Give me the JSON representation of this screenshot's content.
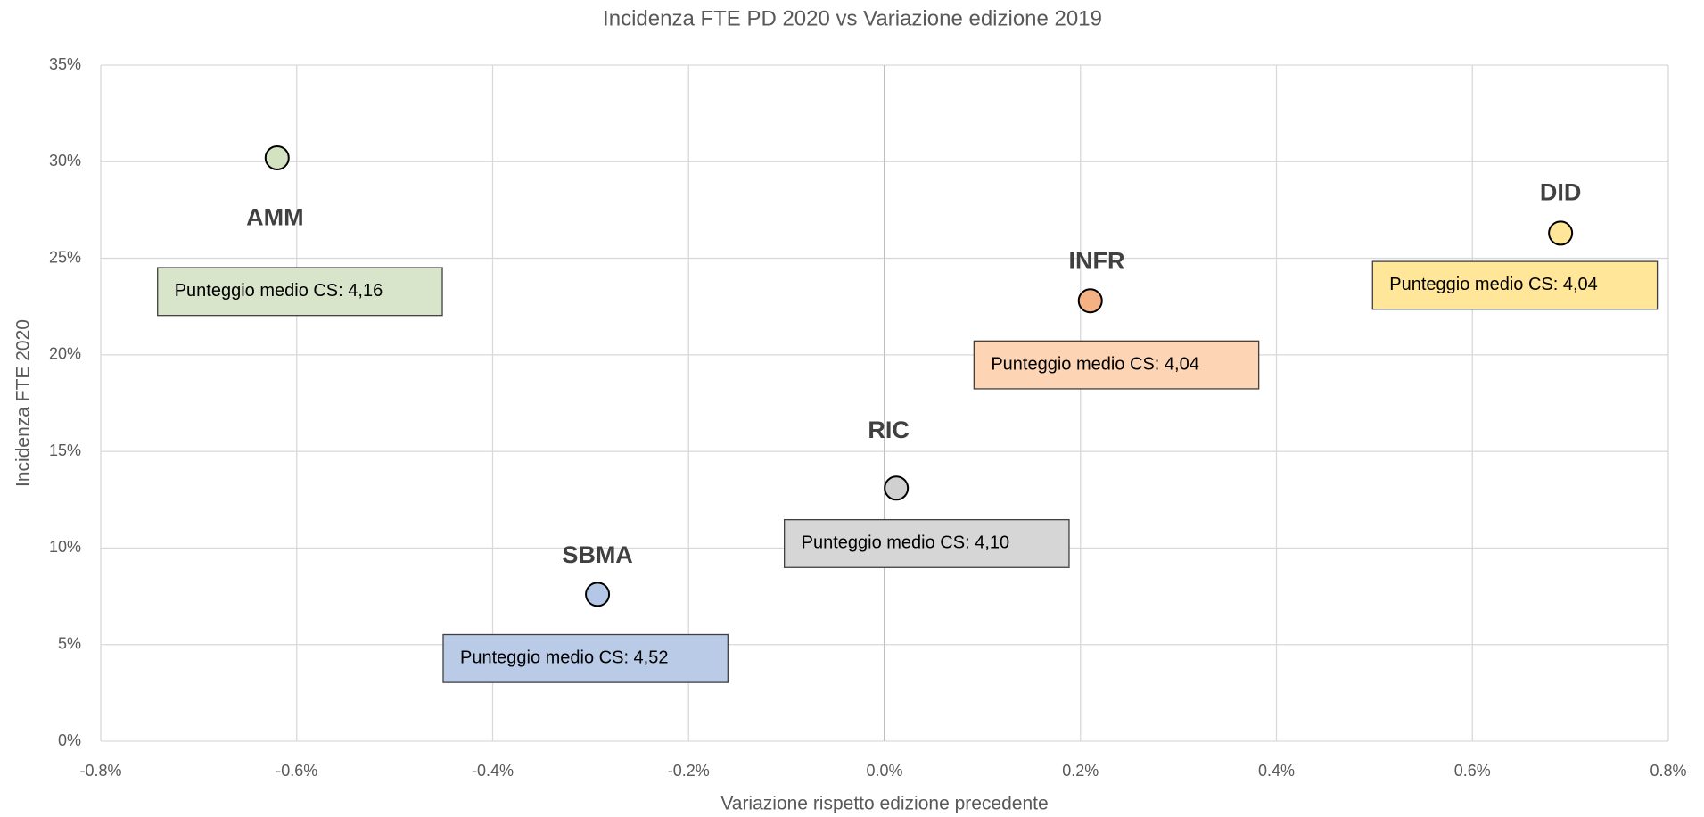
{
  "chart_data": {
    "type": "scatter",
    "title": "Incidenza FTE PD 2020 vs Variazione edizione 2019",
    "xlabel": "Variazione rispetto edizione precedente",
    "ylabel": "Incidenza FTE 2020",
    "labels": [
      "AMM",
      "SBMA",
      "RIC",
      "INFR",
      "DID"
    ],
    "x": [
      -0.62,
      -0.293,
      0.012,
      0.21,
      0.69
    ],
    "values": [
      30.2,
      7.6,
      13.1,
      22.8,
      26.3
    ],
    "colors": [
      "#d3e2c0",
      "#b4c7e7",
      "#d0d0d0",
      "#f4b183",
      "#ffe699"
    ],
    "notes": [
      "Punteggio medio CS: 4,16",
      "Punteggio medio CS: 4,52",
      "Punteggio medio CS: 4,10",
      "Punteggio medio CS: 4,04",
      "Punteggio medio CS: 4,04"
    ],
    "note_colors": [
      "#d9e5cb",
      "#b9cbe6",
      "#d6d6d6",
      "#fdd5b5",
      "#ffe699"
    ],
    "xlim": [
      -0.8,
      0.8
    ],
    "xticks": [
      {
        "value": -0.8,
        "label": "-0.8%"
      },
      {
        "value": -0.6,
        "label": "-0.6%"
      },
      {
        "value": -0.4,
        "label": "-0.4%"
      },
      {
        "value": -0.2,
        "label": "-0.2%"
      },
      {
        "value": 0,
        "label": "0.0%"
      },
      {
        "value": 0.2,
        "label": "0.2%"
      },
      {
        "value": 0.4,
        "label": "0.4%"
      },
      {
        "value": 0.6,
        "label": "0.6%"
      },
      {
        "value": 0.8,
        "label": "0.8%"
      }
    ],
    "ylim": [
      0,
      35
    ],
    "yticks": [
      {
        "value": 0,
        "label": "0%"
      },
      {
        "value": 5,
        "label": "5%"
      },
      {
        "value": 10,
        "label": "10%"
      },
      {
        "value": 15,
        "label": "15%"
      },
      {
        "value": 20,
        "label": "20%"
      },
      {
        "value": 25,
        "label": "25%"
      },
      {
        "value": 30,
        "label": "30%"
      },
      {
        "value": 35,
        "label": "35%"
      }
    ],
    "grid": true
  }
}
